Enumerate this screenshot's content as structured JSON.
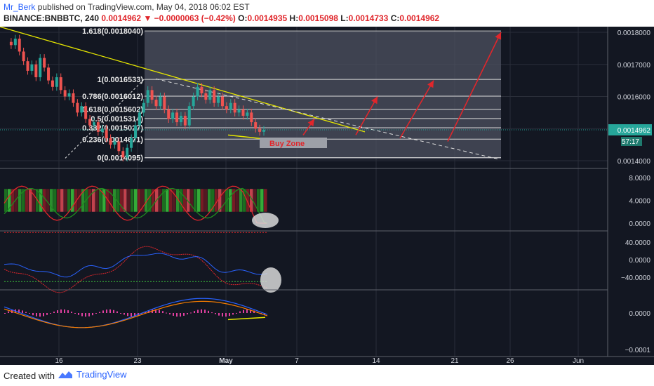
{
  "header": {
    "author": "Mr_Berk",
    "published_text": "published on TradingView.com, May 04, 2018 06:02 EST",
    "symbol": "BINANCE:BNBBTC, 240",
    "price": "0.0014962",
    "change": "−0.0000063 (−0.42%)",
    "o_label": "O:",
    "o_value": "0.0014935",
    "h_label": "H:",
    "h_value": "0.0015098",
    "l_label": "L:",
    "l_value": "0.0014733",
    "c_label": "C:",
    "c_value": "0.0014962"
  },
  "footer": {
    "created_with": "Created with",
    "brand": "TradingView"
  },
  "colors": {
    "background": "#131722",
    "up": "#26a69a",
    "down": "#ef5350",
    "trendline": "#e6e600",
    "arrow": "#e0262b",
    "fib": "#d8d8d8"
  },
  "chart_data": {
    "type": "candlestick",
    "x_ticks": [
      "16",
      "23",
      "May",
      "7",
      "14",
      "21",
      "26",
      "Jun"
    ],
    "price_axis": {
      "ticks": [
        "0.0018000",
        "0.0017000",
        "0.0016000",
        "0.0015000",
        "0.0014000"
      ],
      "ylim": [
        0.001395,
        0.001845
      ],
      "last_price": "0.0014962",
      "countdown": "57:17"
    },
    "fib_levels": [
      {
        "label": "1.618(0.0018040)",
        "value": 0.001804
      },
      {
        "label": "1(0.0016533)",
        "value": 0.0016533
      },
      {
        "label": "0.786(0.0016012)",
        "value": 0.0016012
      },
      {
        "label": "0.618(0.0015602)",
        "value": 0.0015602
      },
      {
        "label": "0.5(0.0015314)",
        "value": 0.0015314
      },
      {
        "label": "0.382(0.0015027)",
        "value": 0.0015027
      },
      {
        "label": "0.236(0.0014671)",
        "value": 0.0014671
      },
      {
        "label": "0(0.0014095)",
        "value": 0.0014095
      }
    ],
    "annotations": {
      "buy_zone": "Buy Zone"
    },
    "indicator1": {
      "ticks": [
        "8.0000",
        "4.0000",
        "0.0000"
      ]
    },
    "indicator2": {
      "ticks": [
        "40.0000",
        "0.0000",
        "−40.0000"
      ]
    },
    "indicator3": {
      "ticks": [
        "0.0000",
        "−0.0001"
      ]
    }
  }
}
